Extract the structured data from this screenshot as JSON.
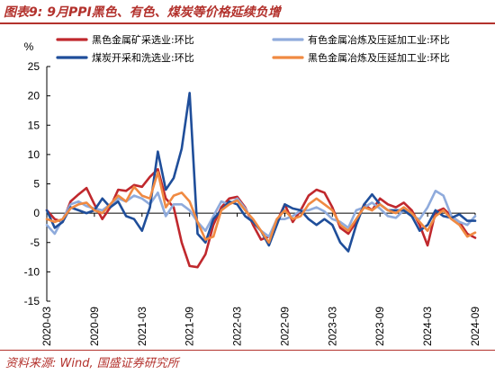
{
  "header": {
    "title": "图表9:  9月PPI黑色、有色、煤炭等价格延续负增"
  },
  "footer": {
    "source": "资料来源:  Wind,  国盛证券研究所"
  },
  "chart_data": {
    "type": "line",
    "ylabel": "%",
    "ylim": [
      -15,
      25
    ],
    "yticks": [
      -15,
      -10,
      -5,
      0,
      5,
      10,
      15,
      20,
      25
    ],
    "xlim": [
      "2020-03",
      "2024-09"
    ],
    "xticks": [
      "2020-03",
      "2020-09",
      "2021-03",
      "2021-09",
      "2022-03",
      "2022-09",
      "2023-03",
      "2023-09",
      "2024-03",
      "2024-09"
    ],
    "grid": false,
    "legend_position": "top",
    "series": [
      {
        "name": "黑色金属矿采选业:环比",
        "color": "#c0282d",
        "points": [
          [
            "2020-03",
            0.5
          ],
          [
            "2020-04",
            -1.0
          ],
          [
            "2020-05",
            -1.5
          ],
          [
            "2020-06",
            2.0
          ],
          [
            "2020-07",
            3.2
          ],
          [
            "2020-08",
            4.3
          ],
          [
            "2020-09",
            1.5
          ],
          [
            "2020-10",
            -1.0
          ],
          [
            "2020-11",
            1.0
          ],
          [
            "2020-12",
            4.0
          ],
          [
            "2021-01",
            3.8
          ],
          [
            "2021-02",
            4.8
          ],
          [
            "2021-03",
            4.5
          ],
          [
            "2021-04",
            6.2
          ],
          [
            "2021-05",
            7.5
          ],
          [
            "2021-06",
            2.5
          ],
          [
            "2021-07",
            1.0
          ],
          [
            "2021-08",
            -5.0
          ],
          [
            "2021-09",
            -9.0
          ],
          [
            "2021-10",
            -9.2
          ],
          [
            "2021-11",
            -7.0
          ],
          [
            "2021-12",
            -2.0
          ],
          [
            "2022-01",
            1.0
          ],
          [
            "2022-02",
            2.5
          ],
          [
            "2022-03",
            2.8
          ],
          [
            "2022-04",
            1.0
          ],
          [
            "2022-05",
            -2.0
          ],
          [
            "2022-06",
            -4.5
          ],
          [
            "2022-07",
            -4.0
          ],
          [
            "2022-08",
            -1.5
          ],
          [
            "2022-09",
            1.5
          ],
          [
            "2022-10",
            -1.5
          ],
          [
            "2022-11",
            0.5
          ],
          [
            "2022-12",
            3.0
          ],
          [
            "2023-01",
            4.0
          ],
          [
            "2023-02",
            3.5
          ],
          [
            "2023-03",
            1.0
          ],
          [
            "2023-04",
            -2.5
          ],
          [
            "2023-05",
            -3.5
          ],
          [
            "2023-06",
            -1.5
          ],
          [
            "2023-07",
            1.5
          ],
          [
            "2023-08",
            0.5
          ],
          [
            "2023-09",
            2.5
          ],
          [
            "2023-10",
            1.5
          ],
          [
            "2023-11",
            1.0
          ],
          [
            "2023-12",
            1.8
          ],
          [
            "2024-01",
            0.5
          ],
          [
            "2024-02",
            -2.0
          ],
          [
            "2024-03",
            -5.5
          ],
          [
            "2024-04",
            0.2
          ],
          [
            "2024-05",
            0.8
          ],
          [
            "2024-06",
            -0.5
          ],
          [
            "2024-07",
            -1.5
          ],
          [
            "2024-08",
            -3.5
          ],
          [
            "2024-09",
            -4.2
          ]
        ]
      },
      {
        "name": "有色金属冶炼及压延加工业:环比",
        "color": "#8fabdc",
        "points": [
          [
            "2020-03",
            -2.0
          ],
          [
            "2020-04",
            -3.5
          ],
          [
            "2020-05",
            -1.0
          ],
          [
            "2020-06",
            1.5
          ],
          [
            "2020-07",
            2.0
          ],
          [
            "2020-08",
            1.2
          ],
          [
            "2020-09",
            0.8
          ],
          [
            "2020-10",
            0.5
          ],
          [
            "2020-11",
            1.5
          ],
          [
            "2020-12",
            2.5
          ],
          [
            "2021-01",
            2.0
          ],
          [
            "2021-02",
            3.0
          ],
          [
            "2021-03",
            2.5
          ],
          [
            "2021-04",
            1.5
          ],
          [
            "2021-05",
            3.5
          ],
          [
            "2021-06",
            -0.5
          ],
          [
            "2021-07",
            1.5
          ],
          [
            "2021-08",
            1.5
          ],
          [
            "2021-09",
            0.5
          ],
          [
            "2021-10",
            -1.5
          ],
          [
            "2021-11",
            -3.0
          ],
          [
            "2021-12",
            -0.5
          ],
          [
            "2022-01",
            2.0
          ],
          [
            "2022-02",
            1.5
          ],
          [
            "2022-03",
            2.5
          ],
          [
            "2022-04",
            0.8
          ],
          [
            "2022-05",
            -1.5
          ],
          [
            "2022-06",
            -3.0
          ],
          [
            "2022-07",
            -4.0
          ],
          [
            "2022-08",
            -1.0
          ],
          [
            "2022-09",
            -1.0
          ],
          [
            "2022-10",
            -0.5
          ],
          [
            "2022-11",
            0.5
          ],
          [
            "2022-12",
            0.5
          ],
          [
            "2023-01",
            1.0
          ],
          [
            "2023-02",
            0.3
          ],
          [
            "2023-03",
            -1.0
          ],
          [
            "2023-04",
            -1.5
          ],
          [
            "2023-05",
            -2.5
          ],
          [
            "2023-06",
            0.5
          ],
          [
            "2023-07",
            1.0
          ],
          [
            "2023-08",
            1.8
          ],
          [
            "2023-09",
            0.8
          ],
          [
            "2023-10",
            -0.5
          ],
          [
            "2023-11",
            -0.8
          ],
          [
            "2023-12",
            0.5
          ],
          [
            "2024-01",
            -0.5
          ],
          [
            "2024-02",
            -1.0
          ],
          [
            "2024-03",
            1.0
          ],
          [
            "2024-04",
            3.8
          ],
          [
            "2024-05",
            3.0
          ],
          [
            "2024-06",
            -0.5
          ],
          [
            "2024-07",
            -1.5
          ],
          [
            "2024-08",
            -2.0
          ],
          [
            "2024-09",
            -0.5
          ]
        ]
      },
      {
        "name": "煤炭开采和洗选业:环比",
        "color": "#1f4e9a",
        "points": [
          [
            "2020-03",
            0.5
          ],
          [
            "2020-04",
            -2.5
          ],
          [
            "2020-05",
            -1.5
          ],
          [
            "2020-06",
            1.0
          ],
          [
            "2020-07",
            0.5
          ],
          [
            "2020-08",
            0.0
          ],
          [
            "2020-09",
            0.5
          ],
          [
            "2020-10",
            2.5
          ],
          [
            "2020-11",
            1.0
          ],
          [
            "2020-12",
            2.0
          ],
          [
            "2021-01",
            -0.5
          ],
          [
            "2021-02",
            -1.0
          ],
          [
            "2021-03",
            -3.0
          ],
          [
            "2021-04",
            1.0
          ],
          [
            "2021-05",
            10.5
          ],
          [
            "2021-06",
            4.0
          ],
          [
            "2021-07",
            6.0
          ],
          [
            "2021-08",
            11.0
          ],
          [
            "2021-09",
            20.5
          ],
          [
            "2021-10",
            -3.5
          ],
          [
            "2021-11",
            -5.0
          ],
          [
            "2021-12",
            -1.0
          ],
          [
            "2022-01",
            0.5
          ],
          [
            "2022-02",
            2.0
          ],
          [
            "2022-03",
            1.5
          ],
          [
            "2022-04",
            -0.5
          ],
          [
            "2022-05",
            -1.5
          ],
          [
            "2022-06",
            -3.0
          ],
          [
            "2022-07",
            -5.5
          ],
          [
            "2022-08",
            -2.0
          ],
          [
            "2022-09",
            1.5
          ],
          [
            "2022-10",
            0.8
          ],
          [
            "2022-11",
            0.5
          ],
          [
            "2022-12",
            -1.0
          ],
          [
            "2023-01",
            -2.0
          ],
          [
            "2023-02",
            -1.0
          ],
          [
            "2023-03",
            -2.0
          ],
          [
            "2023-04",
            -5.0
          ],
          [
            "2023-05",
            -6.5
          ],
          [
            "2023-06",
            -2.0
          ],
          [
            "2023-07",
            1.5
          ],
          [
            "2023-08",
            3.2
          ],
          [
            "2023-09",
            1.5
          ],
          [
            "2023-10",
            0.5
          ],
          [
            "2023-11",
            0.5
          ],
          [
            "2023-12",
            0.5
          ],
          [
            "2024-01",
            -0.5
          ],
          [
            "2024-02",
            -3.0
          ],
          [
            "2024-03",
            -2.0
          ],
          [
            "2024-04",
            0.5
          ],
          [
            "2024-05",
            -0.5
          ],
          [
            "2024-06",
            -0.8
          ],
          [
            "2024-07",
            -0.2
          ],
          [
            "2024-08",
            -1.3
          ],
          [
            "2024-09",
            -1.3
          ]
        ]
      },
      {
        "name": "黑色金属冶炼及压延加工业:环比",
        "color": "#f08a42",
        "points": [
          [
            "2020-03",
            -1.0
          ],
          [
            "2020-04",
            -1.5
          ],
          [
            "2020-05",
            -1.0
          ],
          [
            "2020-06",
            0.8
          ],
          [
            "2020-07",
            1.5
          ],
          [
            "2020-08",
            1.8
          ],
          [
            "2020-09",
            0.5
          ],
          [
            "2020-10",
            0.0
          ],
          [
            "2020-11",
            1.5
          ],
          [
            "2020-12",
            3.0
          ],
          [
            "2021-01",
            2.0
          ],
          [
            "2021-02",
            4.5
          ],
          [
            "2021-03",
            3.0
          ],
          [
            "2021-04",
            2.5
          ],
          [
            "2021-05",
            7.0
          ],
          [
            "2021-06",
            1.0
          ],
          [
            "2021-07",
            3.0
          ],
          [
            "2021-08",
            3.5
          ],
          [
            "2021-09",
            2.0
          ],
          [
            "2021-10",
            -1.5
          ],
          [
            "2021-11",
            -4.5
          ],
          [
            "2021-12",
            -4.0
          ],
          [
            "2022-01",
            0.5
          ],
          [
            "2022-02",
            1.5
          ],
          [
            "2022-03",
            2.2
          ],
          [
            "2022-04",
            0.5
          ],
          [
            "2022-05",
            -1.0
          ],
          [
            "2022-06",
            -3.0
          ],
          [
            "2022-07",
            -5.0
          ],
          [
            "2022-08",
            -1.0
          ],
          [
            "2022-09",
            0.5
          ],
          [
            "2022-10",
            -1.0
          ],
          [
            "2022-11",
            -0.5
          ],
          [
            "2022-12",
            1.5
          ],
          [
            "2023-01",
            2.5
          ],
          [
            "2023-02",
            1.5
          ],
          [
            "2023-03",
            0.5
          ],
          [
            "2023-04",
            -2.0
          ],
          [
            "2023-05",
            -3.0
          ],
          [
            "2023-06",
            -1.0
          ],
          [
            "2023-07",
            1.0
          ],
          [
            "2023-08",
            0.5
          ],
          [
            "2023-09",
            1.5
          ],
          [
            "2023-10",
            0.5
          ],
          [
            "2023-11",
            0.0
          ],
          [
            "2023-12",
            1.0
          ],
          [
            "2024-01",
            0.0
          ],
          [
            "2024-02",
            -1.5
          ],
          [
            "2024-03",
            -3.0
          ],
          [
            "2024-04",
            -0.5
          ],
          [
            "2024-05",
            0.5
          ],
          [
            "2024-06",
            -1.0
          ],
          [
            "2024-07",
            -2.0
          ],
          [
            "2024-08",
            -4.0
          ],
          [
            "2024-09",
            -3.3
          ]
        ]
      }
    ]
  }
}
